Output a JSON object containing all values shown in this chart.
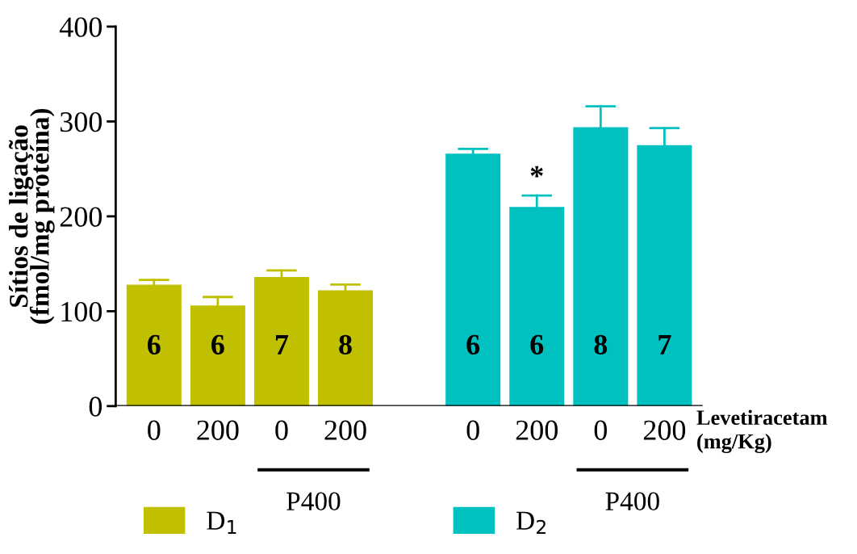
{
  "chart_data": {
    "type": "bar",
    "ylabel": "Sítios de ligação\n(fmol/mg proteína)",
    "xlabel": "Levetiracetam\n(mg/Kg)",
    "categories": [
      "0",
      "200",
      "0",
      "200",
      null,
      "0",
      "200",
      "0",
      "200"
    ],
    "series": [
      {
        "name": "D$_{1}$",
        "color": "#c0c000",
        "values": [
          128,
          106,
          136,
          122,
          null,
          null,
          null,
          null,
          null
        ],
        "errors": [
          [
            128,
            133
          ],
          [
            106,
            115
          ],
          [
            136,
            143
          ],
          [
            122,
            128
          ],
          null,
          null,
          null,
          null,
          null
        ]
      },
      {
        "name": "D$_{2}$",
        "color": "#00c0c0",
        "values": [
          null,
          null,
          null,
          null,
          null,
          266,
          210,
          294,
          275
        ],
        "errors": [
          null,
          null,
          null,
          null,
          null,
          [
            266,
            271
          ],
          [
            210,
            222
          ],
          [
            294,
            316
          ],
          [
            275,
            293
          ]
        ]
      }
    ],
    "annotations": [
      "*",
      "P400",
      "P400",
      "6",
      "6",
      "7",
      "8",
      "6",
      "6",
      "8",
      "7"
    ],
    "ylim": [
      0,
      400
    ],
    "yticks": [
      0,
      100,
      200,
      300,
      400
    ],
    "legend": "bottom",
    "grid": false
  }
}
